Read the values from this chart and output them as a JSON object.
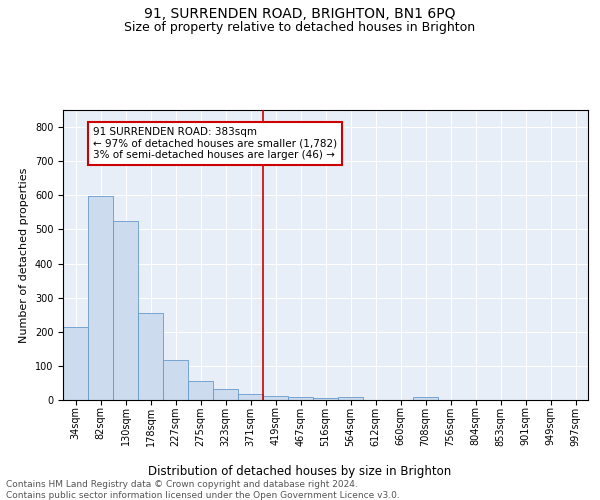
{
  "title1": "91, SURRENDEN ROAD, BRIGHTON, BN1 6PQ",
  "title2": "Size of property relative to detached houses in Brighton",
  "xlabel": "Distribution of detached houses by size in Brighton",
  "ylabel": "Number of detached properties",
  "bin_labels": [
    "34sqm",
    "82sqm",
    "130sqm",
    "178sqm",
    "227sqm",
    "275sqm",
    "323sqm",
    "371sqm",
    "419sqm",
    "467sqm",
    "516sqm",
    "564sqm",
    "612sqm",
    "660sqm",
    "708sqm",
    "756sqm",
    "804sqm",
    "853sqm",
    "901sqm",
    "949sqm",
    "997sqm"
  ],
  "bar_heights": [
    213,
    597,
    524,
    256,
    117,
    55,
    31,
    18,
    13,
    8,
    5,
    8,
    0,
    0,
    8,
    0,
    0,
    0,
    0,
    0,
    0
  ],
  "bar_color": "#ccdcee",
  "bar_edge_color": "#6699cc",
  "vline_x": 8.0,
  "vline_color": "#cc0000",
  "annotation_text": "91 SURRENDEN ROAD: 383sqm\n← 97% of detached houses are smaller (1,782)\n3% of semi-detached houses are larger (46) →",
  "annotation_box_color": "#ffffff",
  "annotation_box_edge": "#cc0000",
  "ylim": [
    0,
    850
  ],
  "yticks": [
    0,
    100,
    200,
    300,
    400,
    500,
    600,
    700,
    800
  ],
  "background_color": "#e8eef7",
  "footer_text": "Contains HM Land Registry data © Crown copyright and database right 2024.\nContains public sector information licensed under the Open Government Licence v3.0.",
  "title1_fontsize": 10,
  "title2_fontsize": 9,
  "xlabel_fontsize": 8.5,
  "ylabel_fontsize": 8,
  "tick_fontsize": 7,
  "footer_fontsize": 6.5,
  "annot_fontsize": 7.5
}
